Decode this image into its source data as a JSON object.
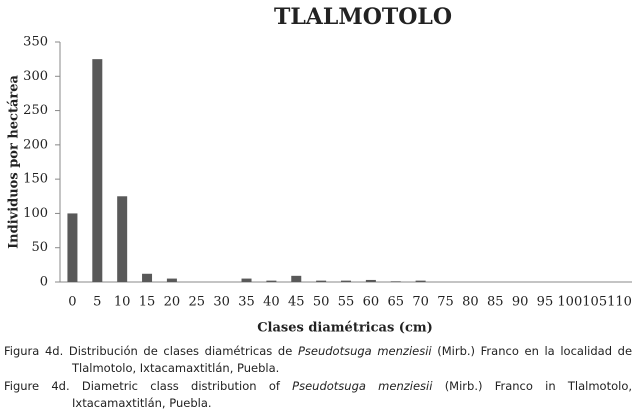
{
  "chart_data": {
    "type": "bar",
    "title": "TLALMOTOLO",
    "x_label": "Clases diamétricas (cm)",
    "y_label": "Individuos por hectárea",
    "categories": [
      "0",
      "5",
      "10",
      "15",
      "20",
      "25",
      "30",
      "35",
      "40",
      "45",
      "50",
      "55",
      "60",
      "65",
      "70",
      "75",
      "80",
      "85",
      "90",
      "95",
      "100",
      "105",
      "110"
    ],
    "values": [
      100,
      325,
      125,
      12,
      5,
      0,
      0,
      5,
      2,
      9,
      2,
      2,
      3,
      1,
      2,
      0,
      0,
      0,
      0,
      0,
      0,
      0,
      0
    ],
    "color": "#595959",
    "ylim": [
      0,
      350
    ],
    "yticks": [
      0,
      50,
      100,
      150,
      200,
      250,
      300,
      350
    ],
    "grid": false
  },
  "captions": [
    {
      "prefix": "Figura 4d. Distribución de clases diamétricas de",
      "species": "Pseudotsuga menziesii",
      "suffix": "(Mirb.) Franco en la localidad de Tlalmotolo, Ixtacamaxtitlán, Puebla."
    },
    {
      "prefix": "Figure 4d. Diametric class distribution of",
      "species": "Pseudotsuga menziesii",
      "suffix": "(Mirb.) Franco in Tlalmotolo, Ixtacamaxtitlán, Puebla."
    }
  ]
}
